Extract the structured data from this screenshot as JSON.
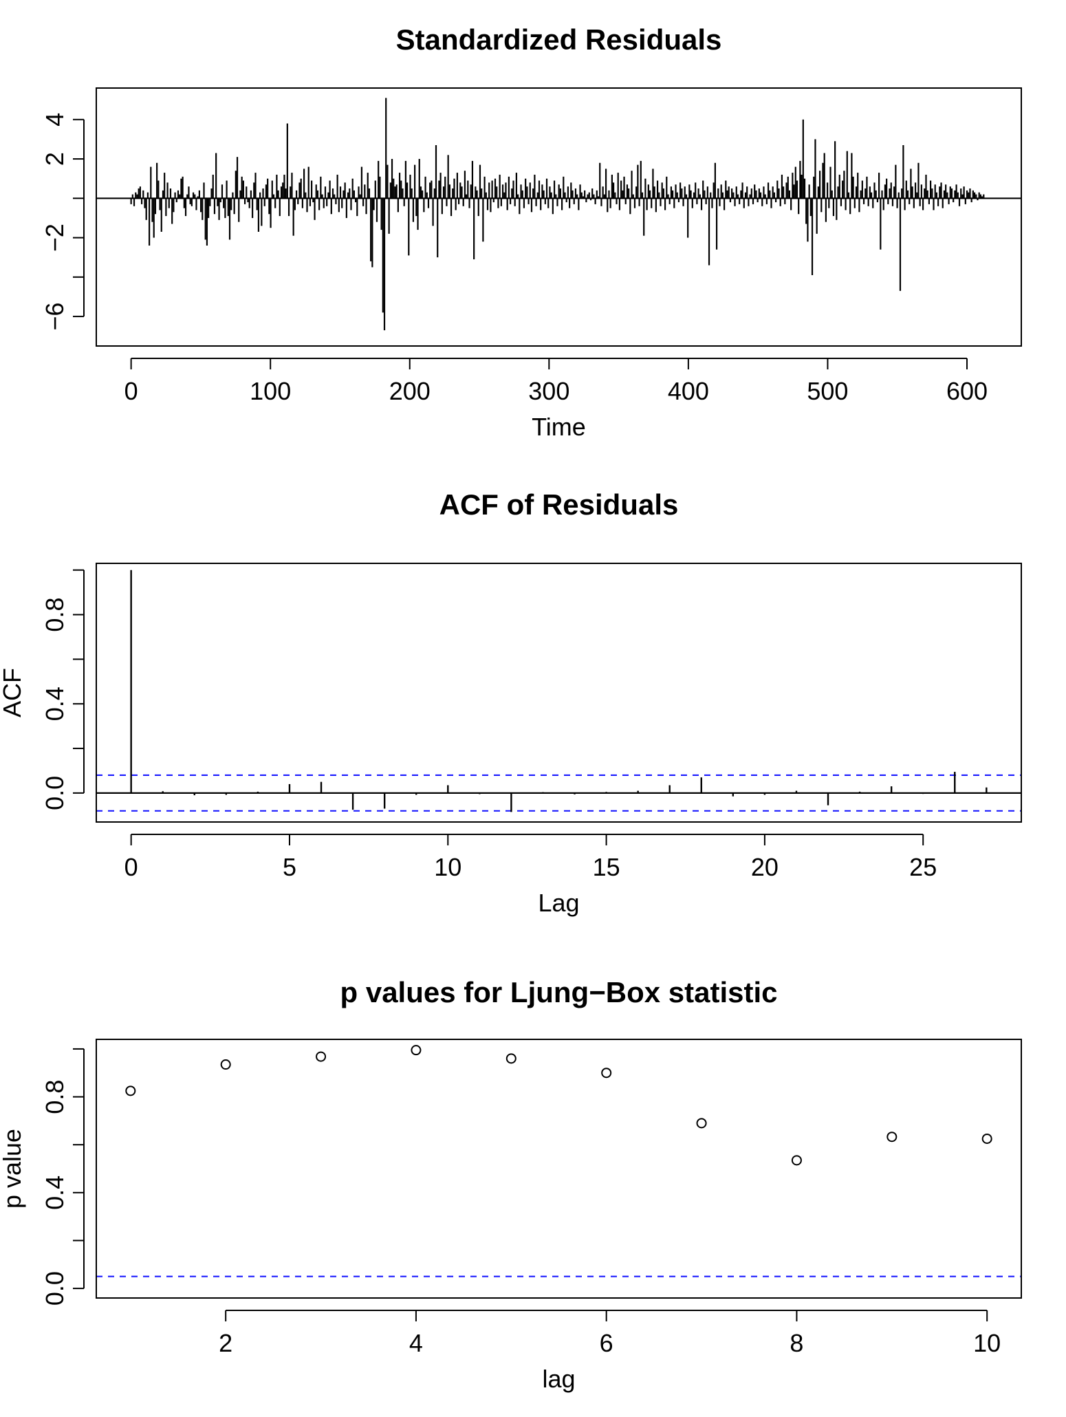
{
  "chart_data": [
    {
      "type": "line",
      "title": "Standardized Residuals",
      "xlabel": "Time",
      "ylabel": "",
      "xlim": [
        -25,
        639
      ],
      "ylim": [
        -7.5,
        5.6
      ],
      "x_ticks": [
        0,
        100,
        200,
        300,
        400,
        500,
        600
      ],
      "y_ticks": [
        -6,
        -4,
        -2,
        0,
        2,
        4
      ],
      "y_tick_labels": [
        "−6",
        "",
        "−2",
        "",
        "2",
        "4"
      ],
      "reference_line": 0,
      "series": [
        {
          "values": [
            -0.3,
            0.2,
            -0.4,
            0.3,
            0.2,
            0.5,
            0.6,
            -0.3,
            0.4,
            -0.5,
            -1.1,
            0.3,
            -2.4,
            1.6,
            -1.2,
            -2.0,
            -0.8,
            1.8,
            0.9,
            -0.6,
            -1.7,
            0.4,
            1.3,
            -0.9,
            0.8,
            -0.5,
            0.5,
            -1.3,
            -0.7,
            0.3,
            -0.2,
            0.4,
            0.2,
            1.0,
            1.1,
            -0.5,
            -0.9,
            0.2,
            0.6,
            -0.3,
            -0.4,
            0.3,
            0.2,
            -0.6,
            0.1,
            0.4,
            -0.7,
            -1.1,
            0.8,
            -2.1,
            -2.4,
            -1.0,
            -0.4,
            0.5,
            1.2,
            -0.8,
            2.3,
            -0.4,
            -1.1,
            -0.2,
            0.7,
            -0.5,
            -1.0,
            0.9,
            -0.9,
            -2.1,
            -0.6,
            0.3,
            -0.8,
            1.4,
            2.1,
            -1.2,
            0.4,
            1.1,
            0.9,
            -0.3,
            0.6,
            -0.2,
            -0.5,
            0.4,
            -1.0,
            0.8,
            1.3,
            -0.6,
            -1.7,
            0.3,
            -1.4,
            0.5,
            -0.4,
            0.7,
            1.0,
            -0.8,
            -1.5,
            0.9,
            0.2,
            -0.5,
            1.2,
            0.4,
            -0.9,
            0.6,
            0.8,
            1.2,
            0.5,
            3.8,
            -0.9,
            0.6,
            1.3,
            -1.9,
            -0.6,
            0.4,
            -0.3,
            0.8,
            1.0,
            -0.5,
            1.5,
            0.3,
            -0.7,
            1.6,
            -0.4,
            0.9,
            -0.2,
            -1.1,
            0.7,
            0.4,
            -0.6,
            1.1,
            0.2,
            -0.5,
            0.6,
            -0.4,
            0.3,
            0.9,
            -0.8,
            0.5,
            0.2,
            -0.3,
            1.2,
            -0.7,
            0.6,
            -0.5,
            0.4,
            0.8,
            -1.0,
            0.3,
            0.5,
            -0.6,
            1.0,
            0.4,
            -0.2,
            -0.9,
            0.6,
            0.2,
            1.6,
            -0.4,
            0.7,
            -0.8,
            1.3,
            0.5,
            -3.2,
            -3.5,
            -0.6,
            0.9,
            -1.2,
            1.9,
            1.1,
            -1.6,
            -5.8,
            -6.7,
            5.1,
            1.7,
            -1.8,
            0.8,
            2.0,
            1.0,
            0.6,
            0.7,
            -0.7,
            1.3,
            0.9,
            0.5,
            -0.4,
            1.9,
            0.8,
            -2.9,
            1.2,
            0.5,
            -1.2,
            1.7,
            -0.9,
            -1.6,
            2.0,
            0.6,
            0.4,
            -0.7,
            1.1,
            0.3,
            -0.5,
            0.8,
            0.9,
            -1.4,
            0.5,
            2.7,
            -3.0,
            0.9,
            1.3,
            -0.8,
            0.6,
            1.1,
            -0.4,
            2.2,
            0.7,
            -0.9,
            0.5,
            1.0,
            -0.6,
            1.3,
            -0.3,
            0.8,
            0.6,
            -0.4,
            1.4,
            0.2,
            0.9,
            -0.5,
            0.7,
            1.9,
            -3.1,
            0.6,
            0.4,
            -0.9,
            1.7,
            0.5,
            -2.2,
            1.1,
            0.3,
            -0.6,
            0.8,
            -0.7,
            0.9,
            -0.2,
            1.0,
            0.6,
            -0.5,
            1.2,
            -0.4,
            0.7,
            0.3,
            0.8,
            -0.6,
            1.1,
            -0.3,
            0.5,
            0.9,
            -0.4,
            1.3,
            0.2,
            -0.8,
            0.7,
            0.4,
            -0.5,
            1.0,
            0.6,
            -0.3,
            0.8,
            -0.7,
            0.5,
            1.2,
            -0.4,
            0.3,
            0.9,
            -0.6,
            0.7,
            0.4,
            -0.3,
            1.0,
            -0.5,
            0.6,
            0.3,
            -0.8,
            0.9,
            0.2,
            -0.4,
            0.7,
            0.5,
            -0.6,
            1.1,
            0.3,
            -0.2,
            0.6,
            -0.5,
            0.8,
            0.4,
            -0.3,
            0.5,
            0.2,
            -0.6,
            0.7,
            0.3,
            0.1,
            0.4,
            -0.2,
            0.2,
            0.3,
            -0.1,
            0.5,
            0.2,
            -0.3,
            0.4,
            0.1,
            1.8,
            -0.4,
            0.6,
            0.2,
            1.5,
            -0.7,
            0.4,
            -0.5,
            1.2,
            0.8,
            0.3,
            -0.3,
            1.3,
            -0.6,
            0.9,
            0.4,
            1.1,
            -0.3,
            0.7,
            0.5,
            -0.8,
            1.4,
            0.2,
            -0.5,
            0.6,
            1.7,
            -0.4,
            1.9,
            0.3,
            -1.9,
            1.0,
            -0.6,
            0.7,
            0.4,
            -0.5,
            1.5,
            0.6,
            -0.7,
            0.9,
            0.3,
            -0.4,
            0.8,
            0.5,
            -0.6,
            1.1,
            0.2,
            -0.3,
            0.6,
            0.4,
            -0.5,
            0.7,
            0.3,
            -0.2,
            0.8,
            0.5,
            -0.4,
            0.6,
            0.2,
            -2.0,
            0.7,
            0.4,
            -0.5,
            0.3,
            0.8,
            -0.3,
            0.5,
            0.2,
            -0.6,
            0.9,
            0.4,
            -0.3,
            0.6,
            -3.4,
            0.3,
            -0.5,
            0.8,
            1.8,
            -2.6,
            0.5,
            -0.4,
            0.7,
            0.3,
            -0.6,
            0.9,
            0.4,
            0.6,
            -0.2,
            0.5,
            0.3,
            -0.4,
            0.6,
            0.2,
            -0.3,
            0.4,
            0.8,
            -0.5,
            0.3,
            0.6,
            -0.4,
            0.2,
            0.5,
            -0.3,
            0.7,
            0.4,
            -0.2,
            0.5,
            0.3,
            -0.4,
            0.6,
            0.2,
            -0.3,
            0.8,
            0.4,
            -0.5,
            0.6,
            0.3,
            -0.2,
            0.9,
            0.5,
            -0.4,
            1.2,
            0.6,
            -0.3,
            0.8,
            1.1,
            0.4,
            -0.6,
            1.3,
            0.7,
            1.6,
            0.9,
            -0.8,
            1.9,
            1.2,
            4.0,
            1.0,
            -1.3,
            -2.2,
            0.7,
            -0.9,
            -3.9,
            1.1,
            3.0,
            -1.8,
            0.6,
            1.4,
            -0.7,
            1.8,
            2.3,
            -1.2,
            0.8,
            -0.5,
            1.6,
            0.4,
            -0.9,
            2.9,
            -1.1,
            0.6,
            1.2,
            -0.4,
            0.9,
            1.4,
            -0.6,
            2.4,
            0.3,
            -0.8,
            2.3,
            1.1,
            -0.5,
            0.6,
            1.3,
            -0.7,
            0.4,
            0.9,
            -0.3,
            0.5,
            1.1,
            -0.4,
            0.6,
            0.3,
            -0.5,
            0.8,
            0.4,
            -0.2,
            1.3,
            -2.6,
            0.4,
            -0.6,
            0.7,
            1.0,
            -0.3,
            0.5,
            0.8,
            -0.4,
            0.6,
            1.7,
            -0.5,
            0.3,
            -4.7,
            0.5,
            2.7,
            -0.6,
            0.9,
            0.4,
            -0.3,
            1.5,
            0.6,
            -0.5,
            0.8,
            0.3,
            1.8,
            -0.4,
            0.7,
            -0.6,
            0.5,
            1.2,
            0.4,
            -0.3,
            0.9,
            0.5,
            -0.6,
            0.7,
            0.3,
            -0.4,
            0.6,
            0.8,
            -0.5,
            0.4,
            0.7,
            0.3,
            -0.3,
            0.6,
            0.5,
            -0.2,
            0.4,
            0.7,
            0.3,
            -0.4,
            0.5,
            0.2,
            0.6,
            -0.3,
            0.4,
            0.3,
            0.5,
            -0.2,
            0.4,
            0.3,
            0.2,
            -0.1,
            0.3,
            0.2,
            0.1,
            0.2
          ]
        }
      ]
    },
    {
      "type": "bar",
      "title": "ACF of Residuals",
      "xlabel": "Lag",
      "ylabel": "ACF",
      "xlim": [
        -1.1,
        28.1
      ],
      "ylim": [
        -0.13,
        1.03
      ],
      "x_ticks": [
        0,
        5,
        10,
        15,
        20,
        25
      ],
      "y_ticks": [
        0,
        0.2,
        0.4,
        0.6,
        0.8,
        1.0
      ],
      "y_tick_labels": [
        "0.0",
        "",
        "0.4",
        "",
        "0.8",
        ""
      ],
      "lags": [
        0,
        1,
        2,
        3,
        4,
        5,
        6,
        7,
        8,
        9,
        10,
        11,
        12,
        13,
        14,
        15,
        16,
        17,
        18,
        19,
        20,
        21,
        22,
        23,
        24,
        25,
        26,
        27
      ],
      "values": [
        1.0,
        0.008,
        -0.01,
        -0.008,
        0.006,
        0.04,
        0.05,
        -0.075,
        -0.07,
        -0.008,
        0.035,
        -0.005,
        -0.085,
        0.004,
        -0.006,
        0.005,
        0.01,
        0.035,
        0.07,
        -0.015,
        -0.008,
        0.01,
        -0.055,
        0.006,
        0.03,
        -0.004,
        0.095,
        0.025
      ],
      "confidence_band": [
        0.08,
        -0.08
      ],
      "reference_line": 0
    },
    {
      "type": "scatter",
      "title": "p values for Ljung−Box statistic",
      "xlabel": "lag",
      "ylabel": "p value",
      "xlim": [
        0.64,
        10.36
      ],
      "ylim": [
        -0.04,
        1.04
      ],
      "x_ticks": [
        2,
        4,
        6,
        8,
        10
      ],
      "y_ticks": [
        0,
        0.2,
        0.4,
        0.6,
        0.8,
        1.0
      ],
      "y_tick_labels": [
        "0.0",
        "",
        "0.4",
        "",
        "0.8",
        ""
      ],
      "x": [
        1,
        2,
        3,
        4,
        5,
        6,
        7,
        8,
        9,
        10
      ],
      "y": [
        0.825,
        0.935,
        0.968,
        0.995,
        0.96,
        0.9,
        0.69,
        0.535,
        0.633,
        0.625
      ],
      "reference_line": 0.05
    }
  ],
  "colors": {
    "ink": "#000000",
    "band": "#1a1aff"
  }
}
